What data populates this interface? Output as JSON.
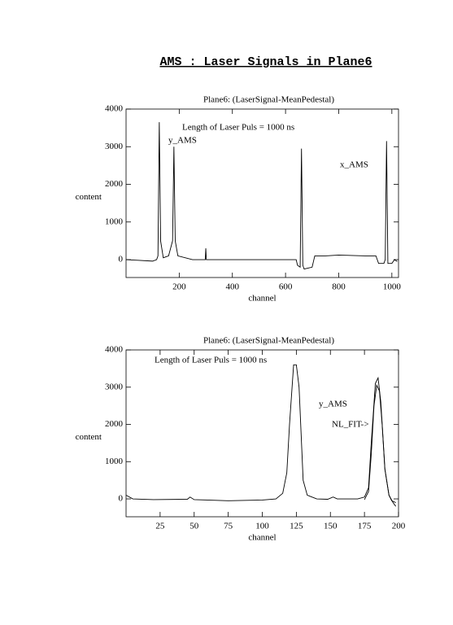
{
  "title": "AMS : Laser Signals in Plane6",
  "chart_data": [
    {
      "type": "line",
      "title": "Plane6: (LaserSignal-MeanPedestal)",
      "x_label": "channel",
      "y_label": "content",
      "annotations": [
        "Length of Laser Puls = 1000 ns",
        "y_AMS",
        "x_AMS"
      ],
      "xlim": [
        0,
        1025
      ],
      "ylim": [
        -475,
        4000
      ],
      "xticks": [
        200,
        400,
        600,
        800,
        1000
      ],
      "yticks": [
        0,
        1000,
        2000,
        3000,
        4000
      ],
      "series": [
        {
          "color": "#000000",
          "x": [
            0,
            50,
            100,
            115,
            120,
            125,
            130,
            140,
            160,
            175,
            180,
            185,
            195,
            250,
            298,
            300,
            302,
            400,
            500,
            640,
            645,
            655,
            660,
            665,
            670,
            700,
            710,
            750,
            800,
            900,
            940,
            950,
            970,
            975,
            980,
            985,
            1000,
            1010,
            1020
          ],
          "values": [
            0,
            -20,
            -40,
            0,
            100,
            3650,
            500,
            50,
            100,
            500,
            3000,
            500,
            100,
            0,
            0,
            300,
            0,
            0,
            0,
            0,
            -150,
            -200,
            2950,
            -150,
            -250,
            -200,
            100,
            100,
            120,
            100,
            100,
            -100,
            -100,
            0,
            3150,
            -100,
            -100,
            0,
            -50
          ]
        }
      ]
    },
    {
      "type": "line",
      "title": "Plane6: (LaserSignal-MeanPedestal)",
      "x_label": "channel",
      "y_label": "content",
      "annotations": [
        "Length of Laser Puls = 1000 ns",
        "y_AMS",
        "NL_FIT->"
      ],
      "xlim": [
        0,
        200
      ],
      "ylim": [
        -480,
        4000
      ],
      "xticks": [
        25,
        50,
        75,
        100,
        125,
        150,
        175,
        200
      ],
      "yticks": [
        0,
        1000,
        2000,
        3000,
        4000
      ],
      "series": [
        {
          "color": "#000000",
          "x": [
            0,
            5,
            20,
            45,
            47,
            50,
            75,
            100,
            110,
            115,
            118,
            120,
            123,
            125,
            127,
            130,
            133,
            140,
            148,
            152,
            155,
            170,
            175,
            178,
            180,
            183,
            185,
            187,
            190,
            193,
            195,
            198
          ],
          "values": [
            100,
            0,
            -20,
            -10,
            50,
            -20,
            -50,
            -30,
            0,
            150,
            700,
            2000,
            3600,
            3600,
            3000,
            500,
            100,
            0,
            -10,
            50,
            0,
            0,
            50,
            300,
            1500,
            3100,
            3250,
            2600,
            800,
            100,
            -50,
            -100
          ]
        },
        {
          "color": "#000000",
          "x": [
            175,
            178,
            180,
            182,
            184,
            186,
            188,
            190,
            193,
            196,
            198
          ],
          "values": [
            -20,
            200,
            1200,
            2500,
            3050,
            2900,
            2000,
            800,
            100,
            -100,
            -200
          ]
        }
      ]
    }
  ]
}
